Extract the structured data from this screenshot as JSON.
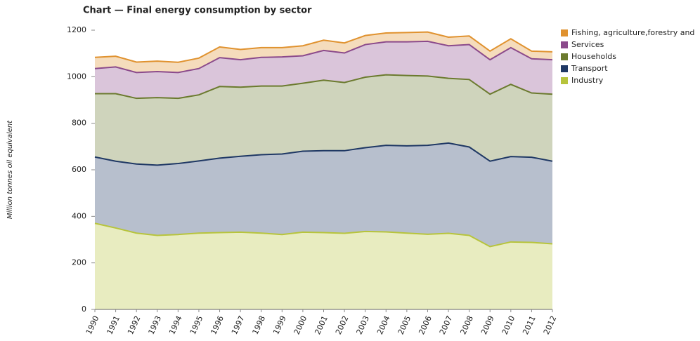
{
  "chart_data": {
    "type": "stacked-area",
    "title": "Chart — Final energy consumption by sector",
    "y_label": "Million tonnes oil equivalent",
    "x": [
      "1990",
      "1991",
      "1992",
      "1993",
      "1994",
      "1995",
      "1996",
      "1997",
      "1998",
      "1999",
      "2000",
      "2001",
      "2002",
      "2003",
      "2004",
      "2005",
      "2006",
      "2007",
      "2008",
      "2009",
      "2010",
      "2011",
      "2012"
    ],
    "ylim": [
      0,
      1200
    ],
    "yticks": [
      0,
      200,
      400,
      600,
      800,
      1000,
      1200
    ],
    "series": [
      {
        "name": "Industry",
        "color": "#b7c43c",
        "values": [
          370,
          350,
          328,
          318,
          322,
          328,
          330,
          332,
          328,
          322,
          332,
          330,
          327,
          335,
          333,
          328,
          323,
          327,
          318,
          270,
          290,
          288,
          282
        ]
      },
      {
        "name": "Transport",
        "color": "#1f3864",
        "values": [
          285,
          287,
          297,
          302,
          305,
          310,
          320,
          326,
          337,
          346,
          348,
          352,
          355,
          360,
          372,
          375,
          382,
          388,
          380,
          367,
          367,
          366,
          355
        ]
      },
      {
        "name": "Households",
        "color": "#6b7a2e",
        "values": [
          272,
          290,
          282,
          290,
          280,
          284,
          308,
          297,
          295,
          292,
          292,
          303,
          293,
          303,
          303,
          302,
          298,
          278,
          290,
          288,
          310,
          276,
          288
        ]
      },
      {
        "name": "Services",
        "color": "#8b4a8b",
        "values": [
          108,
          115,
          111,
          112,
          111,
          113,
          124,
          118,
          123,
          125,
          118,
          128,
          127,
          140,
          142,
          145,
          149,
          140,
          150,
          148,
          158,
          147,
          148
        ]
      },
      {
        "name": "Fishing, agriculture,forestry and",
        "color": "#e0922f",
        "values": [
          48,
          46,
          45,
          45,
          44,
          45,
          46,
          44,
          42,
          40,
          43,
          44,
          43,
          39,
          38,
          40,
          40,
          37,
          37,
          37,
          38,
          33,
          34
        ]
      }
    ]
  }
}
